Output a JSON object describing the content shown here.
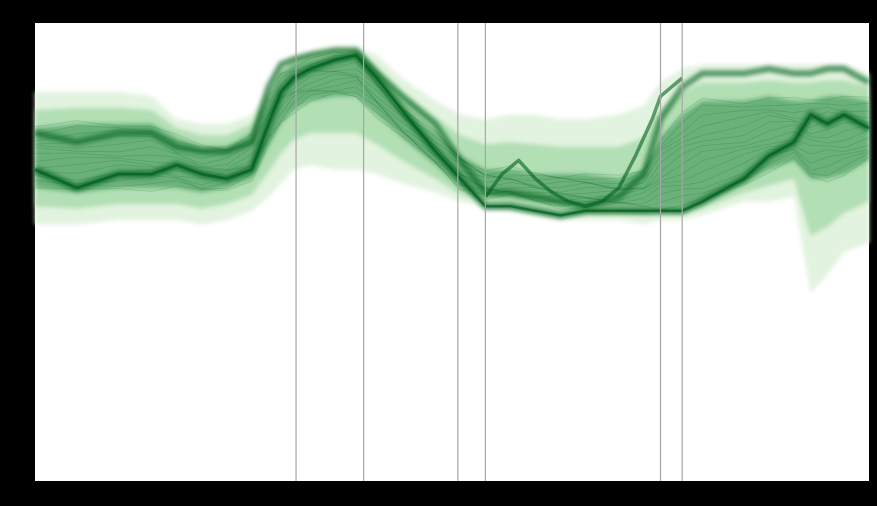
{
  "chart_data": {
    "type": "area",
    "title": "",
    "xlabel": "",
    "ylabel": "",
    "xlim": [
      0,
      100
    ],
    "ylim": [
      0,
      100
    ],
    "grid": false,
    "legend": "none",
    "colors": {
      "page_background": "#000000",
      "plot_background": "#ffffff",
      "density_dark": "#00611f",
      "density_mid": "#2e8b48",
      "density_light": "#8ccf92",
      "density_faint": "#dff2dc",
      "vertical_marker": "#a6a6a6"
    },
    "vertical_markers": [
      31.3,
      39.4,
      50.7,
      54.0,
      75.0,
      77.6
    ],
    "density_band": {
      "x": [
        0,
        5,
        10,
        14,
        17,
        20,
        23,
        26,
        28,
        29.5,
        31,
        33,
        36,
        38.5,
        41,
        44,
        48,
        51,
        54,
        57,
        60,
        63,
        66,
        70,
        73,
        75,
        77.6,
        80,
        85,
        88,
        91,
        93,
        95,
        97,
        100
      ],
      "outer_top": [
        85,
        85,
        85,
        84,
        79,
        78,
        78,
        80,
        86,
        91,
        93,
        94,
        95,
        95,
        93,
        88,
        83,
        80,
        79,
        80,
        80,
        79,
        79,
        80,
        82,
        87,
        90,
        91,
        91,
        91,
        91,
        91,
        91,
        91,
        89
      ],
      "outer_bottom": [
        56,
        56,
        57,
        57,
        57,
        56,
        57,
        59,
        62,
        65,
        68,
        69,
        68,
        68,
        67,
        65,
        63,
        61,
        60,
        59,
        58,
        57,
        57,
        57,
        56,
        57,
        57,
        58,
        61,
        61,
        62,
        41,
        45,
        50,
        52
      ],
      "core_top": [
        77,
        78,
        78,
        78,
        75,
        73,
        73,
        76,
        84,
        89,
        91,
        92,
        93,
        93,
        88,
        82,
        76,
        71,
        68,
        68,
        67,
        67,
        67,
        66,
        68,
        75,
        80,
        83,
        83,
        84,
        83,
        83,
        84,
        84,
        83
      ],
      "core_bottom": [
        64,
        63,
        64,
        64,
        64,
        63,
        64,
        66,
        73,
        78,
        81,
        83,
        84,
        84,
        80,
        75,
        69,
        64,
        62,
        62,
        61,
        60,
        60,
        60,
        60,
        60,
        60,
        61,
        65,
        68,
        70,
        66,
        66,
        67,
        70
      ],
      "ridge_lower": [
        68,
        64,
        67,
        67,
        69,
        67,
        66,
        68,
        78,
        85,
        88,
        90,
        92,
        93,
        88,
        81,
        72,
        66,
        60,
        60,
        59,
        58,
        59,
        59,
        59,
        59,
        59,
        61,
        66,
        71,
        74,
        80,
        78,
        80,
        77
      ],
      "ridge_upper": [
        76,
        74,
        76,
        76,
        73,
        72,
        72,
        74,
        86,
        91,
        92,
        93,
        94,
        94,
        89,
        84,
        78,
        70,
        63,
        63,
        62,
        61,
        60,
        62,
        67,
        79,
        86,
        89,
        89,
        90,
        89,
        89,
        90,
        90,
        87
      ],
      "branch_x": [
        54,
        56,
        58,
        60,
        62,
        64,
        66,
        68,
        70,
        72,
        74,
        75,
        77.6
      ],
      "branch_y": [
        62,
        67,
        70,
        66,
        63,
        61,
        60,
        61,
        64,
        71,
        79,
        84,
        88
      ]
    }
  }
}
